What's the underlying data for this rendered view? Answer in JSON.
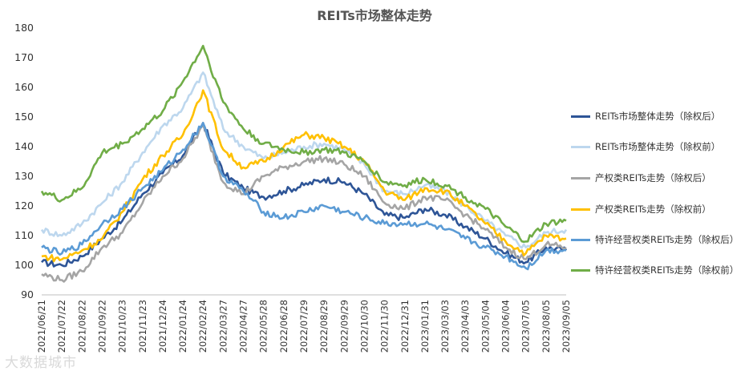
{
  "watermark": "大数据城市",
  "chart_data": {
    "type": "line",
    "title": "REITs市场整体走势",
    "xlabel": "",
    "ylabel": "",
    "ylim": [
      90,
      180
    ],
    "yticks": [
      90,
      100,
      110,
      120,
      130,
      140,
      150,
      160,
      170,
      180
    ],
    "grid": false,
    "legend_position": "right",
    "x": [
      "2021/06/21",
      "2021/07/22",
      "2021/08/22",
      "2021/09/22",
      "2021/10/23",
      "2021/11/23",
      "2021/12/24",
      "2022/01/24",
      "2022/02/24",
      "2022/03/27",
      "2022/04/27",
      "2022/05/28",
      "2022/06/28",
      "2022/07/29",
      "2022/08/29",
      "2022/09/29",
      "2022/10/30",
      "2022/11/30",
      "2022/12/31",
      "2023/01/31",
      "2023/03/03",
      "2023/04/03",
      "2023/05/04",
      "2023/06/04",
      "2023/07/05",
      "2023/08/05",
      "2023/09/05"
    ],
    "series": [
      {
        "name": "REITs市场整体走势（除权后）",
        "color": "#2e5597",
        "values": [
          101,
          100,
          103,
          109,
          115,
          124,
          131,
          137,
          148,
          131,
          126,
          123,
          125,
          127,
          129,
          128,
          124,
          117,
          116,
          119,
          117,
          113,
          109,
          104,
          101,
          106,
          105
        ]
      },
      {
        "name": "REITs市场整体走势（除权前）",
        "color": "#bdd7ee",
        "values": [
          112,
          110,
          114,
          121,
          128,
          138,
          147,
          153,
          165,
          146,
          140,
          136,
          138,
          140,
          141,
          139,
          134,
          125,
          124,
          127,
          125,
          120,
          115,
          110,
          106,
          111,
          112
        ]
      },
      {
        "name": "产权类REITs走势（除权后）",
        "color": "#a5a5a5",
        "values": [
          97,
          95,
          98,
          106,
          111,
          121,
          130,
          136,
          147,
          128,
          124,
          130,
          133,
          135,
          136,
          134,
          130,
          121,
          119,
          123,
          122,
          117,
          112,
          106,
          102,
          107,
          106
        ]
      },
      {
        "name": "产权类REITs走势（除权前）",
        "color": "#ffc000",
        "values": [
          103,
          102,
          105,
          109,
          118,
          129,
          137,
          144,
          159,
          139,
          133,
          135,
          140,
          144,
          143,
          140,
          135,
          125,
          122,
          126,
          125,
          120,
          114,
          108,
          104,
          110,
          109
        ]
      },
      {
        "name": "特许经营权类REITs走势（除权后）",
        "color": "#5b9bd5",
        "values": [
          106,
          104,
          107,
          114,
          119,
          126,
          132,
          139,
          148,
          130,
          125,
          118,
          116,
          118,
          120,
          118,
          116,
          114,
          114,
          114,
          112,
          109,
          106,
          103,
          99,
          105,
          105
        ]
      },
      {
        "name": "特许经营权类REITs走势（除权前）",
        "color": "#70ad47",
        "values": [
          125,
          122,
          126,
          138,
          141,
          146,
          152,
          162,
          174,
          155,
          146,
          141,
          139,
          138,
          139,
          138,
          135,
          128,
          127,
          129,
          127,
          123,
          119,
          113,
          108,
          114,
          115
        ]
      }
    ]
  }
}
